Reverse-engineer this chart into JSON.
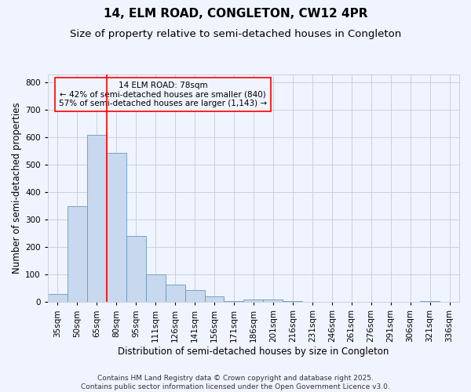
{
  "title": "14, ELM ROAD, CONGLETON, CW12 4PR",
  "subtitle": "Size of property relative to semi-detached houses in Congleton",
  "xlabel": "Distribution of semi-detached houses by size in Congleton",
  "ylabel": "Number of semi-detached properties",
  "categories": [
    "35sqm",
    "50sqm",
    "65sqm",
    "80sqm",
    "95sqm",
    "111sqm",
    "126sqm",
    "141sqm",
    "156sqm",
    "171sqm",
    "186sqm",
    "201sqm",
    "216sqm",
    "231sqm",
    "246sqm",
    "261sqm",
    "276sqm",
    "291sqm",
    "306sqm",
    "321sqm",
    "336sqm"
  ],
  "values": [
    30,
    350,
    610,
    545,
    240,
    100,
    65,
    45,
    20,
    5,
    10,
    10,
    5,
    2,
    2,
    1,
    1,
    1,
    1,
    5,
    1
  ],
  "bar_color": "#c8d8ee",
  "bar_edge_color": "#6699bb",
  "grid_color": "#c8d0e0",
  "background_color": "#f0f4ff",
  "vline_color": "red",
  "vline_x": 2.5,
  "annotation_text": "14 ELM ROAD: 78sqm\n← 42% of semi-detached houses are smaller (840)\n57% of semi-detached houses are larger (1,143) →",
  "ylim": [
    0,
    830
  ],
  "yticks": [
    0,
    100,
    200,
    300,
    400,
    500,
    600,
    700,
    800
  ],
  "footer": "Contains HM Land Registry data © Crown copyright and database right 2025.\nContains public sector information licensed under the Open Government Licence v3.0.",
  "title_fontsize": 11,
  "subtitle_fontsize": 9.5,
  "axis_label_fontsize": 8.5,
  "tick_fontsize": 7.5,
  "annotation_fontsize": 7.5,
  "footer_fontsize": 6.5
}
